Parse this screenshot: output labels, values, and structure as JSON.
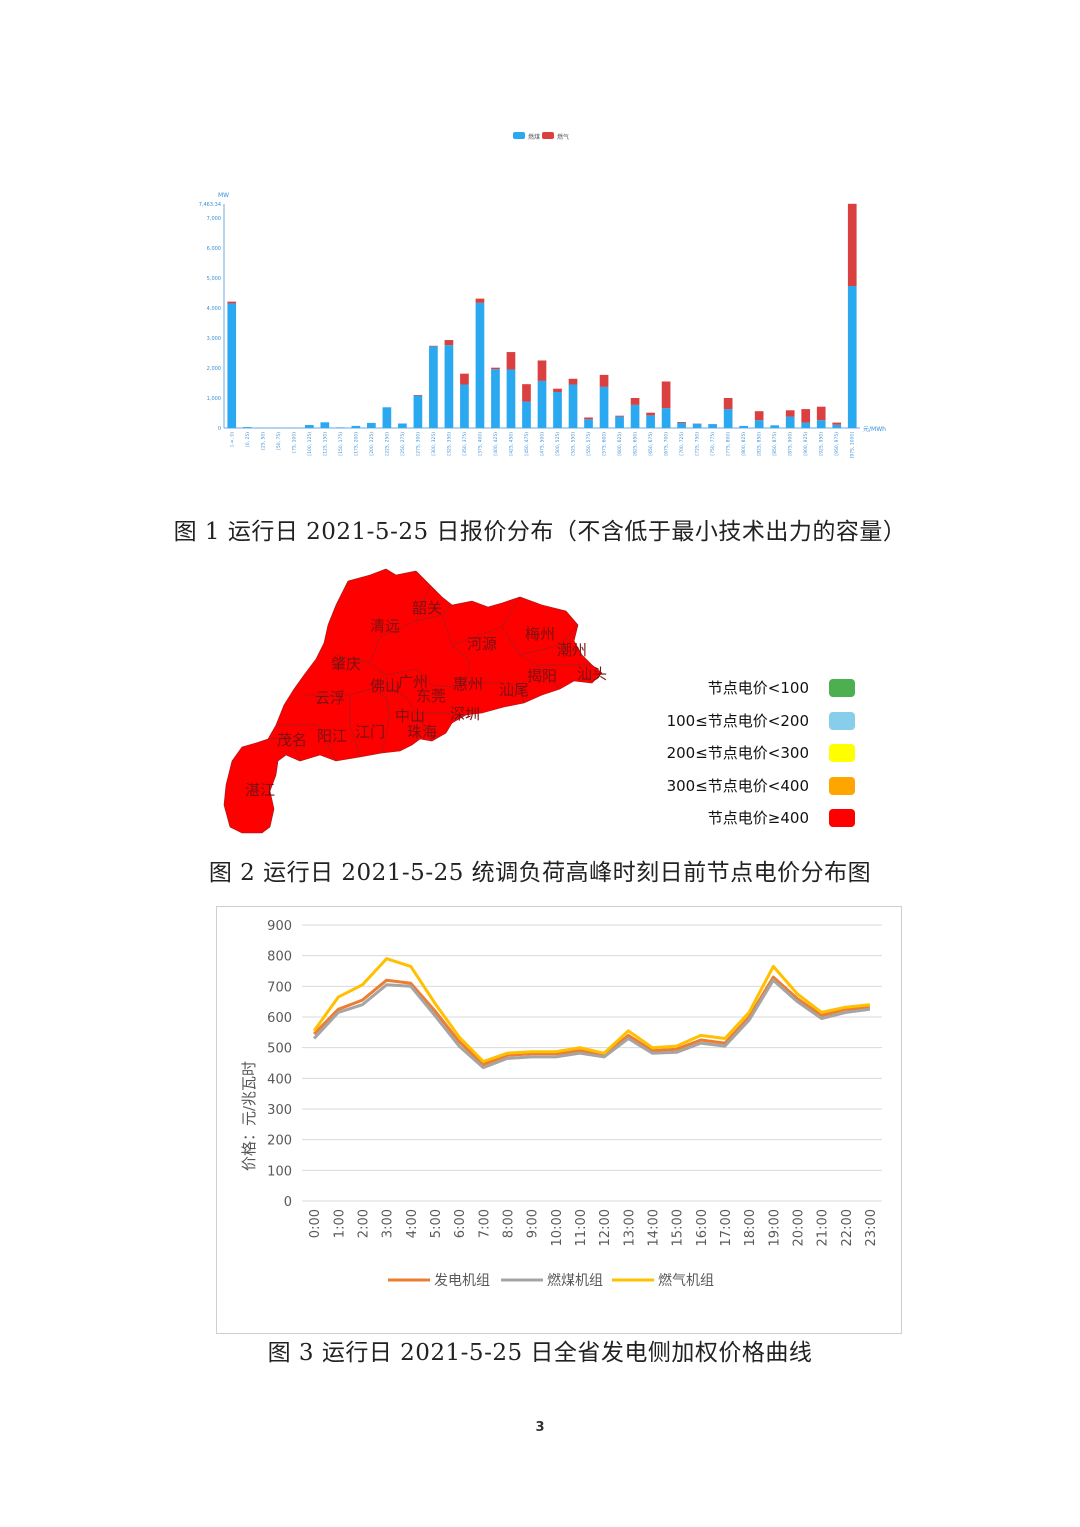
{
  "figure1": {
    "caption": "图 1  运行日 2021-5-25 日报价分布（不含低于最小技术出力的容量）",
    "chart_data": {
      "type": "bar",
      "stacked": true,
      "ylabel": "MW",
      "xlabel": "元/MWh",
      "ylim": [
        0,
        7463.34
      ],
      "yticks": [
        "0",
        "1,000",
        "2,000",
        "3,000",
        "4,000",
        "5,000",
        "6,000",
        "7,000",
        "7,463.34"
      ],
      "legend": [
        "燃煤",
        "燃气"
      ],
      "legend_position": "top",
      "colors": [
        "#2aa8f0",
        "#d9403f"
      ],
      "categories": [
        "[-∞, 0)",
        "[0, 25)",
        "[25, 50)",
        "[50, 75)",
        "[75, 100)",
        "[100, 125)",
        "[125, 150)",
        "[150, 175)",
        "[175, 200)",
        "[200, 225)",
        "[225, 250)",
        "[250, 275)",
        "[275, 300)",
        "[300, 325)",
        "[325, 350)",
        "[350, 375)",
        "[375, 400)",
        "[400, 425)",
        "[425, 450)",
        "[450, 475)",
        "[475, 500)",
        "[500, 525)",
        "[525, 550)",
        "[550, 575)",
        "[575, 600)",
        "[600, 625)",
        "[625, 650)",
        "[650, 675)",
        "[675, 700)",
        "[700, 725)",
        "[725, 750)",
        "[750, 775)",
        "[775, 800)",
        "[800, 825)",
        "[825, 850)",
        "[850, 875)",
        "[875, 900)",
        "[900, 925)",
        "[925, 950)",
        "[950, 975)",
        "[975, 1000]"
      ],
      "series": [
        {
          "name": "燃煤",
          "values": [
            4150,
            30,
            5,
            5,
            5,
            100,
            190,
            20,
            70,
            170,
            690,
            150,
            1080,
            2720,
            2760,
            1450,
            4170,
            1960,
            1950,
            880,
            1570,
            1200,
            1450,
            290,
            1370,
            380,
            770,
            420,
            660,
            170,
            140,
            130,
            630,
            70,
            260,
            90,
            380,
            180,
            260,
            110,
            4730
          ]
        },
        {
          "name": "燃气",
          "values": [
            60,
            0,
            0,
            0,
            0,
            0,
            0,
            0,
            0,
            0,
            0,
            0,
            20,
            20,
            170,
            360,
            140,
            50,
            580,
            580,
            680,
            110,
            190,
            60,
            400,
            30,
            230,
            90,
            890,
            30,
            10,
            0,
            370,
            0,
            300,
            0,
            210,
            450,
            450,
            70,
            2740
          ]
        }
      ]
    }
  },
  "figure2": {
    "caption": "图 2  运行日 2021-5-25 统调负荷高峰时刻日前节点电价分布图",
    "cities": [
      "韶关",
      "清远",
      "河源",
      "梅州",
      "潮州",
      "肇庆",
      "揭阳",
      "汕头",
      "云浮",
      "佛山",
      "广州",
      "东莞",
      "惠州",
      "汕尾",
      "中山",
      "深圳",
      "茂名",
      "阳江",
      "江门",
      "珠海",
      "湛江"
    ],
    "map_color": "#ff0000",
    "legend": [
      {
        "label": "节点电价<100",
        "color": "#4caf50"
      },
      {
        "label": "100≤节点电价<200",
        "color": "#87ceeb"
      },
      {
        "label": "200≤节点电价<300",
        "color": "#ffff00"
      },
      {
        "label": "300≤节点电价<400",
        "color": "#ffa500"
      },
      {
        "label": "节点电价≥400",
        "color": "#ff0000"
      }
    ]
  },
  "figure3": {
    "caption": "图 3  运行日 2021-5-25 日全省发电侧加权价格曲线",
    "chart_data": {
      "type": "line",
      "ylabel": "价格：元/兆瓦时",
      "ylim": [
        0,
        900
      ],
      "yticks": [
        0,
        100,
        200,
        300,
        400,
        500,
        600,
        700,
        800,
        900
      ],
      "x": [
        "0:00",
        "1:00",
        "2:00",
        "3:00",
        "4:00",
        "5:00",
        "6:00",
        "7:00",
        "8:00",
        "9:00",
        "10:00",
        "11:00",
        "12:00",
        "13:00",
        "14:00",
        "15:00",
        "16:00",
        "17:00",
        "18:00",
        "19:00",
        "20:00",
        "21:00",
        "22:00",
        "23:00"
      ],
      "legend_position": "bottom",
      "series": [
        {
          "name": "发电机组",
          "color": "#ed7d31",
          "values": [
            545,
            625,
            655,
            720,
            710,
            620,
            520,
            445,
            475,
            480,
            480,
            490,
            475,
            540,
            490,
            495,
            525,
            515,
            600,
            730,
            660,
            605,
            625,
            630
          ]
        },
        {
          "name": "燃煤机组",
          "color": "#a5a5a5",
          "values": [
            530,
            615,
            640,
            705,
            700,
            605,
            505,
            435,
            465,
            470,
            470,
            482,
            470,
            530,
            482,
            485,
            515,
            505,
            590,
            720,
            650,
            595,
            615,
            625
          ]
        },
        {
          "name": "燃气机组",
          "color": "#ffc000",
          "values": [
            555,
            665,
            705,
            790,
            765,
            645,
            535,
            455,
            482,
            487,
            487,
            500,
            482,
            555,
            500,
            505,
            540,
            530,
            615,
            765,
            675,
            615,
            632,
            640
          ]
        }
      ]
    }
  },
  "page_number": "3"
}
